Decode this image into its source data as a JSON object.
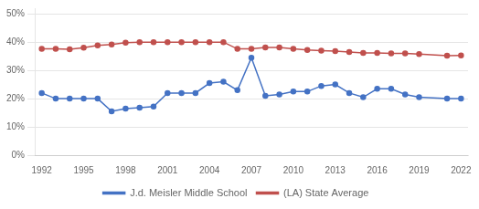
{
  "chart_data": {
    "type": "line",
    "x": [
      1992,
      1993,
      1994,
      1995,
      1996,
      1997,
      1998,
      1999,
      2000,
      2001,
      2002,
      2003,
      2004,
      2005,
      2006,
      2007,
      2008,
      2009,
      2010,
      2011,
      2012,
      2013,
      2014,
      2015,
      2016,
      2017,
      2018,
      2019,
      2021,
      2022
    ],
    "series": [
      {
        "name": "J.d. Meisler Middle School",
        "color": "#4472c4",
        "marker": "circle",
        "line_style": "solid",
        "values": [
          0.22,
          0.2,
          0.2,
          0.2,
          0.2,
          0.155,
          0.165,
          0.168,
          0.172,
          0.22,
          0.22,
          0.22,
          0.255,
          0.26,
          0.23,
          0.345,
          0.21,
          0.215,
          0.225,
          0.225,
          0.245,
          0.25,
          0.22,
          0.205,
          0.235,
          0.235,
          0.215,
          0.205,
          0.2,
          0.2
        ]
      },
      {
        "name": "(LA) State Average",
        "color": "#c0504d",
        "marker": "circle",
        "line_style": "solid",
        "values": [
          0.376,
          0.376,
          0.375,
          0.38,
          0.388,
          0.392,
          0.398,
          0.4,
          0.4,
          0.4,
          0.4,
          0.4,
          0.4,
          0.4,
          0.376,
          0.376,
          0.381,
          0.381,
          0.376,
          0.372,
          0.37,
          0.368,
          0.365,
          0.362,
          0.362,
          0.36,
          0.36,
          0.358,
          0.352,
          0.353
        ]
      }
    ],
    "xlim": [
      1991.5,
      2022.5
    ],
    "xticks": [
      1992,
      1995,
      1998,
      2001,
      2004,
      2007,
      2010,
      2013,
      2016,
      2019,
      2022
    ],
    "ylim": [
      0.0,
      0.52
    ],
    "yticks": [
      {
        "value": 0.0,
        "label": "0%"
      },
      {
        "value": 0.1,
        "label": "10%"
      },
      {
        "value": 0.2,
        "label": "20%"
      },
      {
        "value": 0.3,
        "label": "30%"
      },
      {
        "value": 0.4,
        "label": "40%"
      },
      {
        "value": 0.5,
        "label": "50%"
      }
    ],
    "grid": "y",
    "legend": "bottom"
  }
}
